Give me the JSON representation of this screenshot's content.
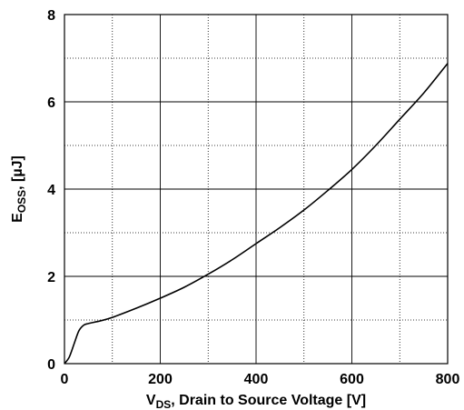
{
  "chart_data": {
    "type": "line",
    "xlabel": {
      "main": "V",
      "sub": "DS",
      "rest": ", Drain to Source Voltage [V]"
    },
    "ylabel": {
      "main": "E",
      "sub": "OSS",
      "rest": ", [µJ]"
    },
    "xlim": [
      0,
      800
    ],
    "ylim": [
      0,
      8
    ],
    "x_ticks": [
      0,
      200,
      400,
      600,
      800
    ],
    "y_ticks": [
      0,
      2,
      4,
      6,
      8
    ],
    "x_tick_labels": [
      "0",
      "200",
      "400",
      "600",
      "800"
    ],
    "y_tick_labels": [
      "0",
      "2",
      "4",
      "6",
      "8"
    ],
    "grid": {
      "major": true,
      "minor": true
    },
    "series": [
      {
        "color": "#000000",
        "x": [
          0,
          10,
          20,
          30,
          40,
          50,
          75,
          100,
          150,
          200,
          250,
          300,
          350,
          400,
          450,
          500,
          550,
          600,
          650,
          700,
          750,
          800
        ],
        "y": [
          0,
          0.15,
          0.45,
          0.75,
          0.88,
          0.92,
          0.98,
          1.06,
          1.27,
          1.5,
          1.75,
          2.05,
          2.38,
          2.75,
          3.12,
          3.52,
          3.97,
          4.45,
          5.0,
          5.6,
          6.2,
          6.88
        ]
      }
    ]
  }
}
